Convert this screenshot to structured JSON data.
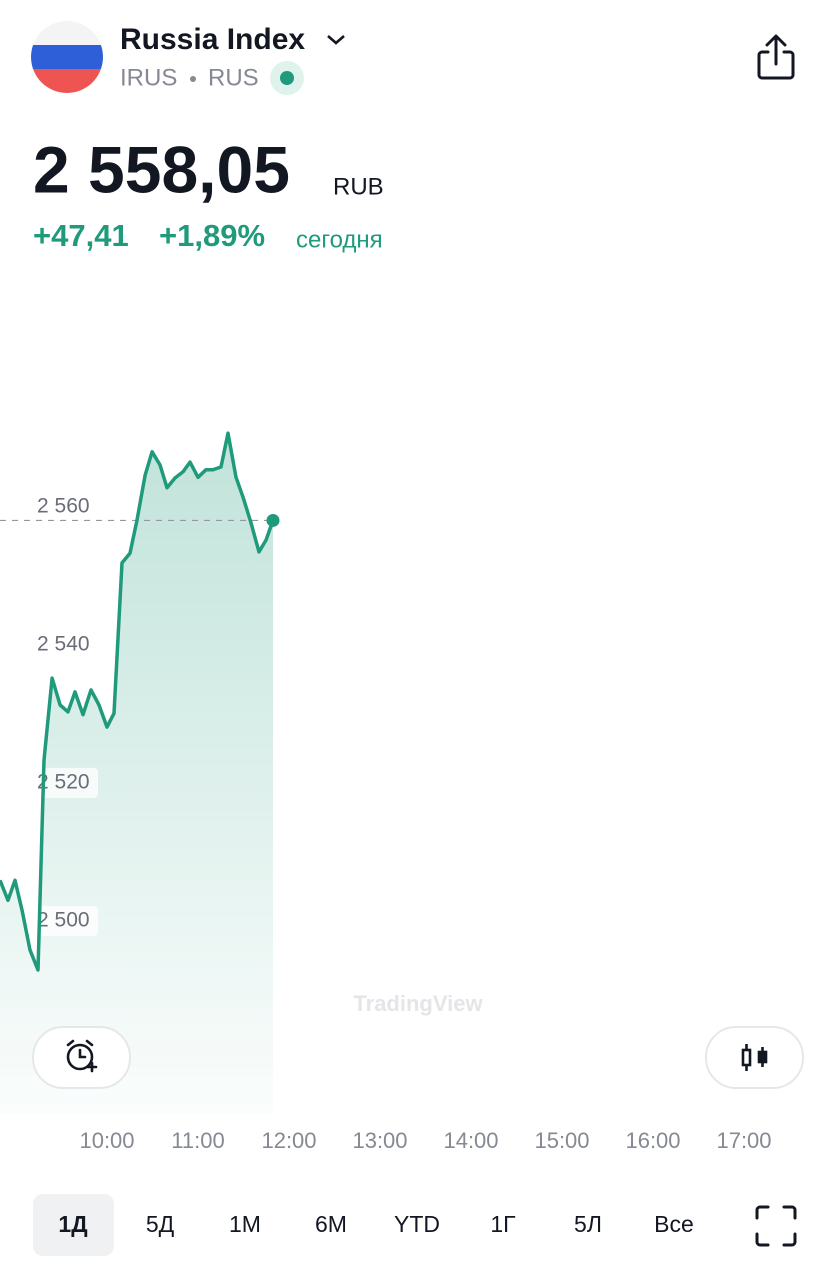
{
  "header": {
    "title": "Russia Index",
    "symbol": "IRUS",
    "exchange": "RUS"
  },
  "quote": {
    "price": {
      "value": 2558.05,
      "label": "2 558,05"
    },
    "currency": "RUB",
    "change": "+47,41",
    "change_percent": "+1,89%",
    "period": "сегодня"
  },
  "chart_data": {
    "type": "line",
    "x": [
      8.824,
      8.912,
      8.989,
      9.066,
      9.154,
      9.242,
      9.308,
      9.396,
      9.484,
      9.571,
      9.648,
      9.736,
      9.824,
      9.912,
      10.0,
      10.077,
      10.165,
      10.253,
      10.33,
      10.418,
      10.495,
      10.582,
      10.659,
      10.747,
      10.835,
      10.912,
      11.0,
      11.088,
      11.165,
      11.253,
      11.33,
      11.418,
      11.495,
      11.582,
      11.67,
      11.747,
      11.824
    ],
    "series": [
      {
        "color": "#1f9a7b",
        "values": [
          2505.9,
          2503.0,
          2505.9,
          2501.6,
          2495.8,
          2492.9,
          2523.3,
          2535.2,
          2531.3,
          2530.3,
          2533.2,
          2529.9,
          2533.5,
          2531.3,
          2528.1,
          2530.1,
          2551.9,
          2553.3,
          2558.1,
          2564.6,
          2568.0,
          2566.1,
          2562.8,
          2564.2,
          2565.1,
          2566.5,
          2564.3,
          2565.4,
          2565.4,
          2565.8,
          2570.7,
          2564.3,
          2561.4,
          2557.7,
          2553.5,
          2555.2,
          2558.05
        ]
      }
    ],
    "xlim": [
      8.824,
      18.011
    ],
    "ylim": [
      2472,
      2593
    ],
    "xticks": [
      {
        "value": 10,
        "label": "10:00"
      },
      {
        "value": 11,
        "label": "11:00"
      },
      {
        "value": 12,
        "label": "12:00"
      },
      {
        "value": 13,
        "label": "13:00"
      },
      {
        "value": 14,
        "label": "14:00"
      },
      {
        "value": 15,
        "label": "15:00"
      },
      {
        "value": 16,
        "label": "16:00"
      },
      {
        "value": 17,
        "label": "17:00"
      }
    ],
    "yticks": [
      {
        "value": 2500,
        "label": "2 500"
      },
      {
        "value": 2520,
        "label": "2 520"
      },
      {
        "value": 2540,
        "label": "2 540"
      },
      {
        "value": 2560,
        "label": "2 560"
      }
    ],
    "watermark": "TradingView"
  },
  "ranges": [
    "1Д",
    "5Д",
    "1М",
    "6М",
    "YTD",
    "1Г",
    "5Л",
    "Все"
  ]
}
